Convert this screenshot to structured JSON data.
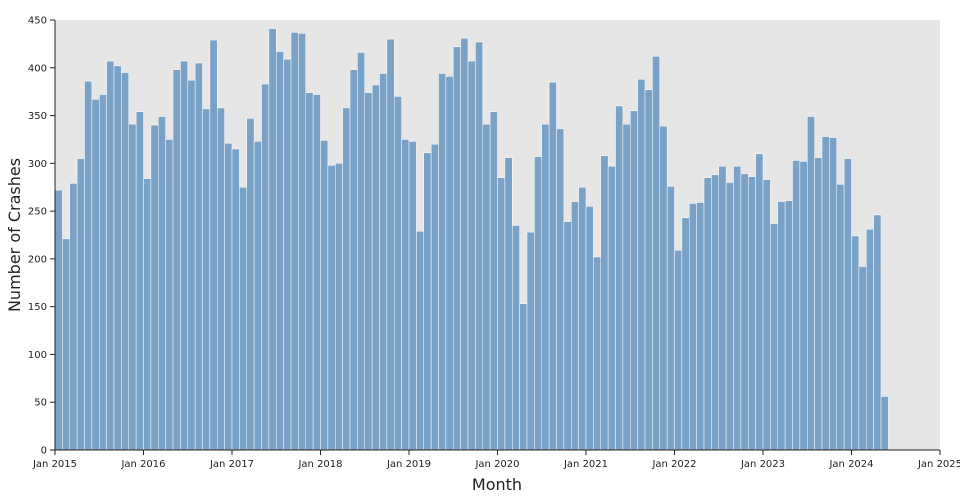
{
  "chart_data": {
    "type": "bar",
    "xlabel": "Month",
    "ylabel": "Number of Crashes",
    "ylim": [
      0,
      450
    ],
    "y_ticks": [
      0,
      50,
      100,
      150,
      200,
      250,
      300,
      350,
      400,
      450
    ],
    "x_range": [
      "2015-01",
      "2025-01"
    ],
    "x_ticks": [
      "2015-01",
      "2016-01",
      "2017-01",
      "2018-01",
      "2019-01",
      "2020-01",
      "2021-01",
      "2022-01",
      "2023-01",
      "2024-01",
      "2025-01"
    ],
    "x_tick_labels": [
      "Jan 2015",
      "Jan 2016",
      "Jan 2017",
      "Jan 2018",
      "Jan 2019",
      "Jan 2020",
      "Jan 2021",
      "Jan 2022",
      "Jan 2023",
      "Jan 2024",
      "Jan 2025"
    ],
    "grid": false,
    "bar_color": "#7aa2c7",
    "plot_background": "#e6e6e6",
    "series": [
      {
        "start_month": "2015-01",
        "values": [
          272,
          221,
          279,
          305,
          386,
          367,
          372,
          407,
          402,
          395,
          341,
          354,
          284,
          340,
          349,
          325,
          398,
          407,
          387,
          405,
          357,
          429,
          358,
          321,
          315,
          275,
          347,
          323,
          383,
          441,
          417,
          409,
          437,
          436,
          374,
          372,
          324,
          298,
          300,
          358,
          398,
          416,
          374,
          382,
          394,
          430,
          370,
          325,
          323,
          229,
          311,
          320,
          394,
          391,
          422,
          431,
          407,
          427,
          341,
          354,
          285,
          306,
          235,
          153,
          228,
          307,
          341,
          385,
          336,
          239,
          260,
          275,
          255,
          202,
          308,
          297,
          360,
          341,
          355,
          388,
          377,
          412,
          339,
          276,
          209,
          243,
          258,
          259,
          285,
          288,
          297,
          280,
          297,
          289,
          286,
          310,
          283,
          237,
          260,
          261,
          303,
          302,
          349,
          306,
          328,
          327,
          278,
          305,
          224,
          192,
          231,
          246,
          56
        ]
      }
    ]
  }
}
